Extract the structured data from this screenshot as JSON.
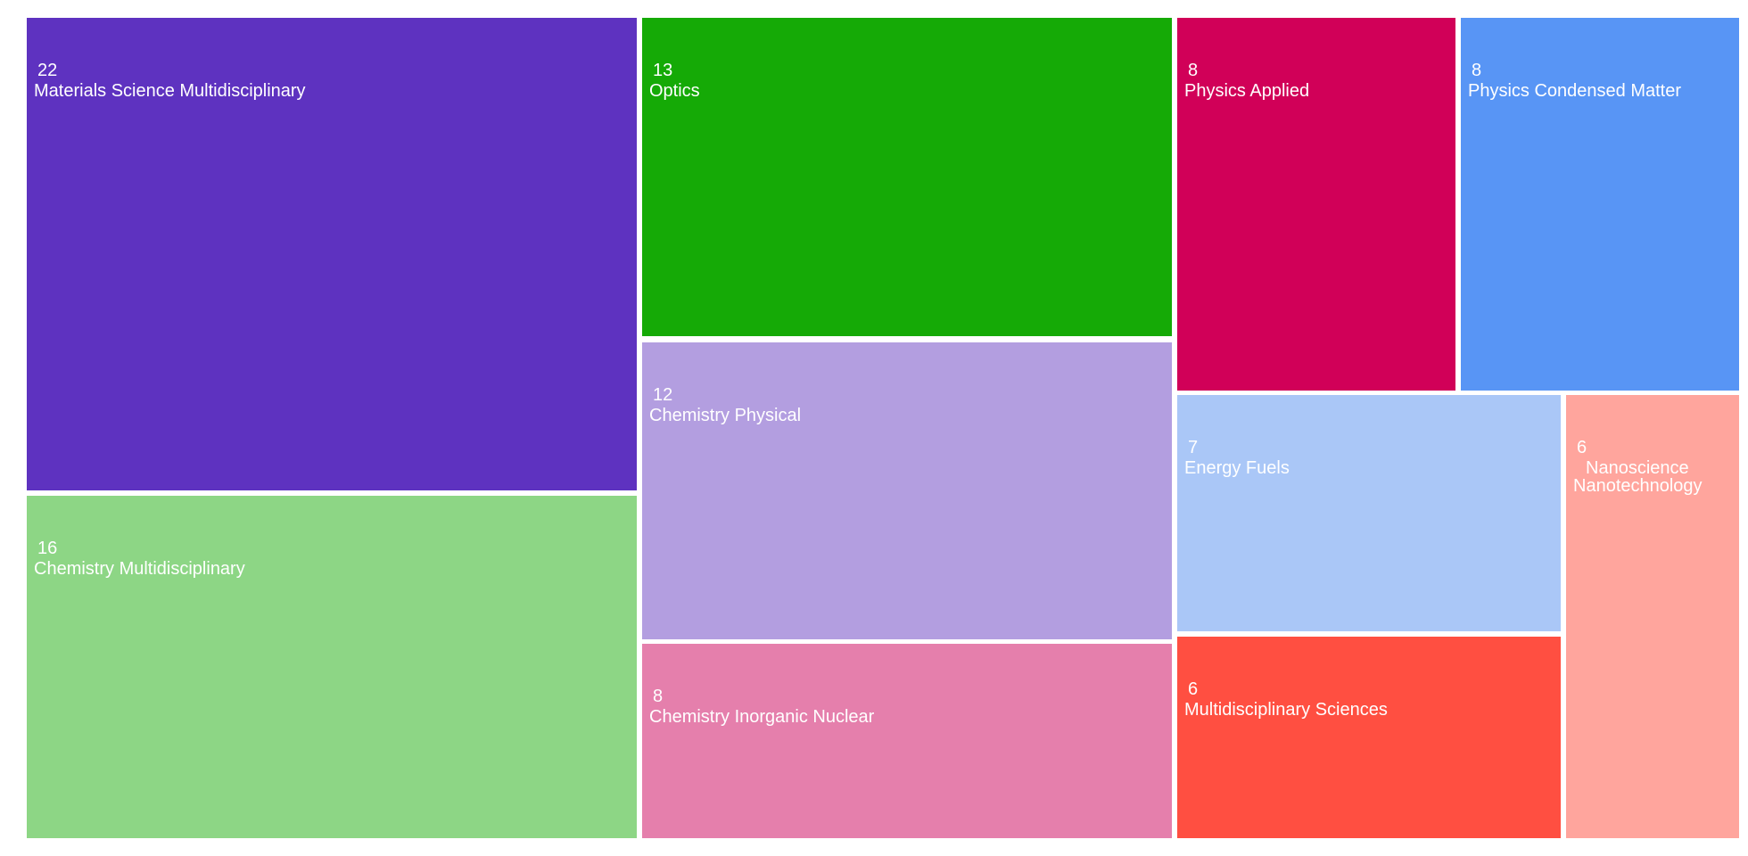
{
  "chart_data": {
    "type": "treemap",
    "title": "",
    "items": [
      {
        "label": "Materials Science Multidisciplinary",
        "label_lines": [
          "Materials Science Multidisciplinary"
        ],
        "value": 22,
        "color": "#5e32c0"
      },
      {
        "label": "Chemistry Multidisciplinary",
        "label_lines": [
          "Chemistry Multidisciplinary"
        ],
        "value": 16,
        "color": "#8dd685"
      },
      {
        "label": "Optics",
        "label_lines": [
          "Optics"
        ],
        "value": 13,
        "color": "#15aa06"
      },
      {
        "label": "Chemistry Physical",
        "label_lines": [
          "Chemistry Physical"
        ],
        "value": 12,
        "color": "#b39ee0"
      },
      {
        "label": "Chemistry Inorganic Nuclear",
        "label_lines": [
          "Chemistry Inorganic Nuclear"
        ],
        "value": 8,
        "color": "#e57fac"
      },
      {
        "label": "Physics Applied",
        "label_lines": [
          "Physics Applied"
        ],
        "value": 8,
        "color": "#d10058"
      },
      {
        "label": "Physics Condensed Matter",
        "label_lines": [
          "Physics Condensed Matter"
        ],
        "value": 8,
        "color": "#5895f5"
      },
      {
        "label": "Energy Fuels",
        "label_lines": [
          "Energy Fuels"
        ],
        "value": 7,
        "color": "#aac7f7"
      },
      {
        "label": "Multidisciplinary Sciences",
        "label_lines": [
          "Multidisciplinary Sciences"
        ],
        "value": 6,
        "color": "#ff4f41"
      },
      {
        "label": "Nanoscience Nanotechnology",
        "label_lines": [
          "Nanoscience",
          "Nanotechnology"
        ],
        "value": 6,
        "color": "#ffa59d"
      }
    ]
  }
}
